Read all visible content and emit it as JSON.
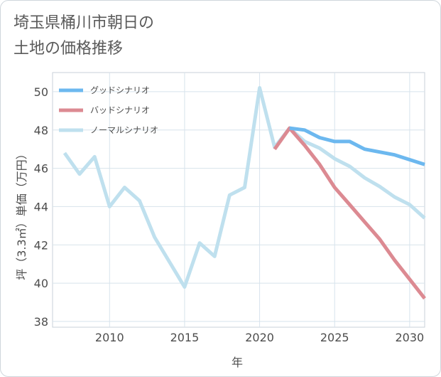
{
  "title": {
    "line1": "埼玉県桶川市朝日の",
    "line2": "土地の価格推移"
  },
  "chart_data": {
    "type": "line",
    "xlabel": "年",
    "ylabel": "坪（3.3㎡）単価（万円）",
    "xlim": [
      2006.2,
      2031
    ],
    "ylim": [
      37.7,
      51.0
    ],
    "xticks": [
      2010,
      2015,
      2020,
      2025,
      2030
    ],
    "yticks": [
      38,
      40,
      42,
      44,
      46,
      48,
      50
    ],
    "grid": true,
    "legend_position": "top-left",
    "series": [
      {
        "name": "グッドシナリオ",
        "color": "#6cb8ef",
        "x": [
          2022,
          2023,
          2024,
          2025,
          2026,
          2027,
          2028,
          2029,
          2030,
          2031
        ],
        "y": [
          48.1,
          48.0,
          47.6,
          47.4,
          47.4,
          47.0,
          46.85,
          46.7,
          46.45,
          46.2
        ]
      },
      {
        "name": "バッドシナリオ",
        "color": "#dc8a92",
        "x": [
          2021,
          2022,
          2023,
          2024,
          2025,
          2026,
          2027,
          2028,
          2029,
          2030,
          2031
        ],
        "y": [
          47.0,
          48.1,
          47.2,
          46.2,
          45.0,
          44.1,
          43.2,
          42.3,
          41.2,
          40.2,
          39.2
        ]
      },
      {
        "name": "ノーマルシナリオ",
        "color": "#bfe0ee",
        "x": [
          2007,
          2008,
          2009,
          2010,
          2011,
          2012,
          2013,
          2014,
          2015,
          2016,
          2017,
          2018,
          2019,
          2020,
          2021,
          2022,
          2023,
          2024,
          2025,
          2026,
          2027,
          2028,
          2029,
          2030,
          2031
        ],
        "y": [
          46.8,
          45.7,
          46.6,
          44.0,
          45.0,
          44.3,
          42.4,
          41.1,
          39.8,
          42.1,
          41.4,
          44.6,
          45.0,
          50.2,
          47.1,
          48.1,
          47.4,
          47.05,
          46.5,
          46.1,
          45.5,
          45.05,
          44.5,
          44.1,
          43.4
        ]
      }
    ]
  }
}
